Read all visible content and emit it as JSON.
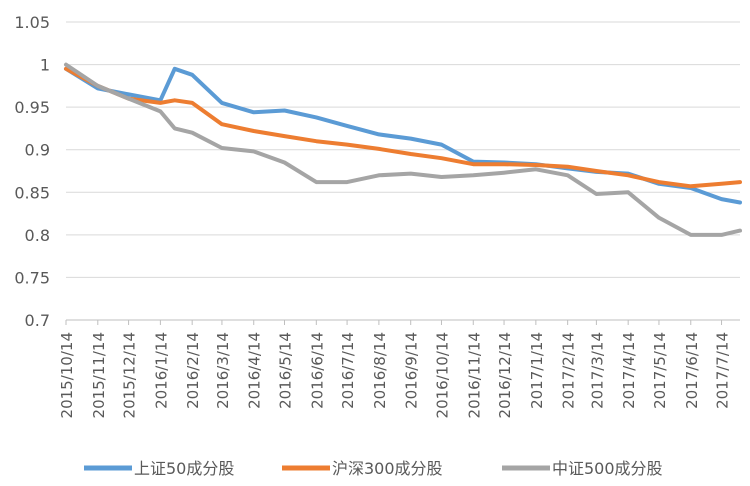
{
  "chart_data": {
    "type": "line",
    "title": "",
    "xlabel": "",
    "ylabel": "",
    "ylim": [
      0.7,
      1.05
    ],
    "yticks": [
      "0.7",
      "0.75",
      "0.8",
      "0.85",
      "0.9",
      "0.95",
      "1",
      "1.05"
    ],
    "xticks": [
      "2015/10/14",
      "2015/11/14",
      "2015/12/14",
      "2016/1/14",
      "2016/2/14",
      "2016/3/14",
      "2016/4/14",
      "2016/5/14",
      "2016/6/14",
      "2016/7/14",
      "2016/8/14",
      "2016/9/14",
      "2016/10/14",
      "2016/11/14",
      "2016/12/14",
      "2017/1/14",
      "2017/2/14",
      "2017/3/14",
      "2017/4/14",
      "2017/5/14",
      "2017/6/14",
      "2017/7/14"
    ],
    "grid": true,
    "legend": "bottom",
    "x": [
      "2015/10/14",
      "2015/11/14",
      "2015/12/14",
      "2016/1/14",
      "2016/1/28",
      "2016/2/14",
      "2016/3/14",
      "2016/4/14",
      "2016/5/14",
      "2016/6/14",
      "2016/7/14",
      "2016/8/14",
      "2016/9/14",
      "2016/10/14",
      "2016/11/14",
      "2016/12/14",
      "2017/1/14",
      "2017/2/14",
      "2017/3/14",
      "2017/4/14",
      "2017/5/14",
      "2017/6/14",
      "2017/7/14",
      "2017/8/1"
    ],
    "series": [
      {
        "name": "上证50成分股",
        "color": "#5b9bd5",
        "values": [
          0.995,
          0.972,
          0.965,
          0.958,
          0.995,
          0.988,
          0.955,
          0.944,
          0.946,
          0.938,
          0.928,
          0.918,
          0.913,
          0.906,
          0.886,
          0.885,
          0.883,
          0.878,
          0.874,
          0.872,
          0.86,
          0.855,
          0.842,
          0.838
        ]
      },
      {
        "name": "沪深300成分股",
        "color": "#ed7d31",
        "values": [
          0.995,
          0.975,
          0.96,
          0.955,
          0.958,
          0.955,
          0.93,
          0.922,
          0.916,
          0.91,
          0.906,
          0.901,
          0.895,
          0.89,
          0.883,
          0.883,
          0.882,
          0.88,
          0.875,
          0.87,
          0.862,
          0.857,
          0.86,
          0.862
        ]
      },
      {
        "name": "中证500成分股",
        "color": "#a5a5a5",
        "values": [
          1.0,
          0.975,
          0.96,
          0.945,
          0.925,
          0.92,
          0.902,
          0.898,
          0.885,
          0.862,
          0.862,
          0.87,
          0.872,
          0.868,
          0.87,
          0.873,
          0.877,
          0.87,
          0.848,
          0.85,
          0.82,
          0.8,
          0.8,
          0.805
        ]
      }
    ]
  }
}
